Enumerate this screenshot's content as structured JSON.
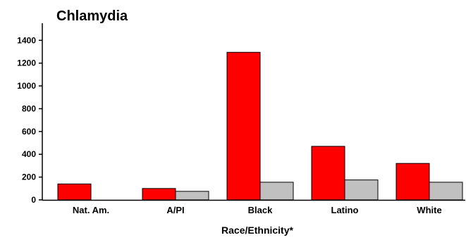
{
  "chart_data": {
    "type": "bar",
    "title": "Chlamydia",
    "xlabel": "Race/Ethnicity*",
    "ylabel": "",
    "categories": [
      "Nat. Am.",
      "A/PI",
      "Black",
      "Latino",
      "White"
    ],
    "series": [
      {
        "color": "#ff0000",
        "values": [
          140,
          100,
          1295,
          470,
          320
        ]
      },
      {
        "color": "#c0c0c0",
        "values": [
          0,
          75,
          155,
          175,
          155
        ]
      }
    ],
    "yticks": [
      0,
      200,
      400,
      600,
      800,
      1000,
      1200,
      1400
    ],
    "ylim": [
      0,
      1400
    ],
    "grid": false,
    "legend": "none"
  }
}
